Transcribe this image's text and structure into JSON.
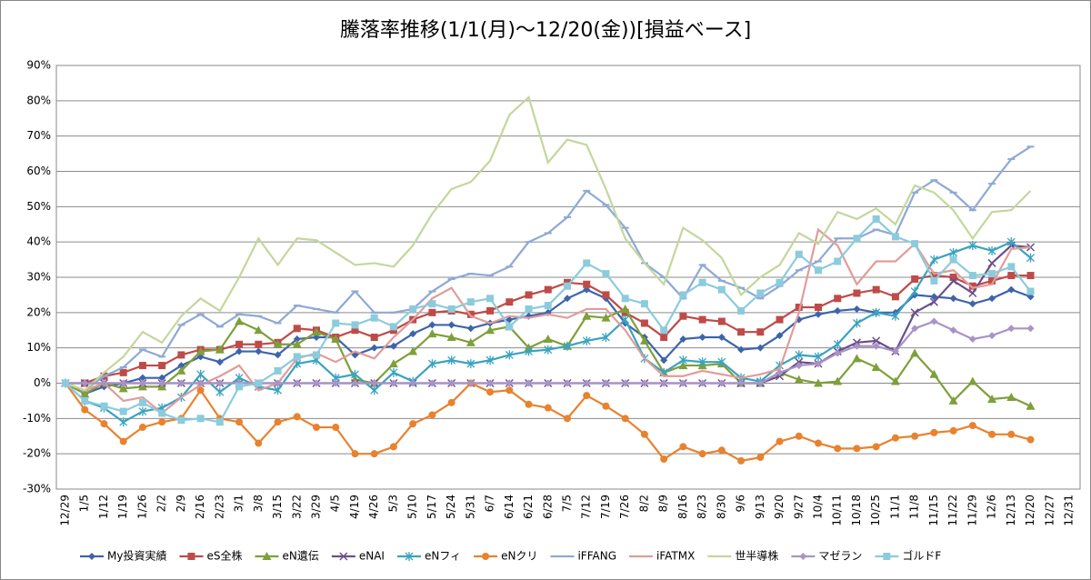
{
  "chart_data": {
    "type": "line",
    "title": "騰落率推移(1/1(月)～12/20(金))[損益ベース]",
    "categories": [
      "12/29",
      "1/5",
      "1/12",
      "1/19",
      "1/26",
      "2/2",
      "2/9",
      "2/16",
      "2/23",
      "3/1",
      "3/8",
      "3/15",
      "3/22",
      "3/29",
      "4/5",
      "4/19",
      "4/26",
      "5/3",
      "5/10",
      "5/17",
      "5/24",
      "5/31",
      "6/7",
      "6/14",
      "6/21",
      "6/28",
      "7/5",
      "7/12",
      "7/19",
      "7/26",
      "8/2",
      "8/9",
      "8/16",
      "8/23",
      "8/30",
      "9/6",
      "9/13",
      "9/20",
      "9/27",
      "10/4",
      "10/11",
      "10/18",
      "10/25",
      "11/1",
      "11/8",
      "11/15",
      "11/22",
      "11/29",
      "12/6",
      "12/13",
      "12/20",
      "12/27",
      "12/31"
    ],
    "ylim": [
      -30,
      90
    ],
    "yticks": [
      {
        "value": -30,
        "label": "-30%"
      },
      {
        "value": -20,
        "label": "-20%"
      },
      {
        "value": -10,
        "label": "-10%"
      },
      {
        "value": 0,
        "label": "0%"
      },
      {
        "value": 10,
        "label": "10%"
      },
      {
        "value": 20,
        "label": "20%"
      },
      {
        "value": 30,
        "label": "30%"
      },
      {
        "value": 40,
        "label": "40%"
      },
      {
        "value": 50,
        "label": "50%"
      },
      {
        "value": 60,
        "label": "60%"
      },
      {
        "value": 70,
        "label": "70%"
      },
      {
        "value": 80,
        "label": "80%"
      },
      {
        "value": 90,
        "label": "90%"
      }
    ],
    "grid": true,
    "legend": "bottom",
    "series": [
      {
        "name": "My投資実績",
        "color": "#3d64ab",
        "marker": "diamond",
        "values": [
          0,
          -3,
          -1,
          0,
          1.5,
          1.5,
          5,
          7.5,
          6,
          9,
          9,
          8,
          12.5,
          13,
          13,
          8,
          10,
          10.5,
          14,
          16.5,
          16.5,
          15.5,
          17,
          18,
          19,
          20,
          24,
          26.5,
          24,
          17,
          13,
          6.5,
          12.5,
          13,
          13,
          9.5,
          10,
          13.5,
          18,
          19.5,
          20.5,
          21,
          20,
          20,
          25,
          24.5,
          24,
          22.5,
          24,
          26.5,
          24.5,
          null,
          null
        ]
      },
      {
        "name": "eS全株",
        "color": "#be4b48",
        "marker": "square",
        "values": [
          0,
          0,
          2,
          3,
          5,
          5,
          8,
          9.5,
          9.5,
          11,
          11,
          11.5,
          15.5,
          15,
          13,
          15,
          13,
          15,
          18,
          20,
          20.5,
          19.5,
          20.5,
          23,
          25,
          26.5,
          28.5,
          28,
          25,
          20,
          17,
          13,
          19,
          18,
          17.5,
          14.5,
          14.5,
          18,
          21.5,
          21.5,
          24,
          25.5,
          26.5,
          24.5,
          29.5,
          30.5,
          30,
          27.5,
          29,
          30.5,
          30.5,
          null,
          null
        ]
      },
      {
        "name": "eN遺伝",
        "color": "#7f9f3a",
        "marker": "triangle",
        "values": [
          0,
          -3,
          0,
          -1.5,
          -1,
          -1,
          3.5,
          9,
          9.5,
          17.5,
          15,
          11,
          11,
          14.5,
          12.5,
          1,
          0,
          5.5,
          9,
          14,
          13,
          11.5,
          15,
          16,
          10,
          12.5,
          10.5,
          19,
          18.5,
          21,
          12,
          3,
          5,
          5,
          5.5,
          0,
          0,
          3,
          1,
          0,
          0.5,
          7,
          4.5,
          0.5,
          8.5,
          2.5,
          -5,
          0.5,
          -4.5,
          -4,
          -6.5,
          null,
          null
        ]
      },
      {
        "name": "eNAI",
        "color": "#6a4f8c",
        "marker": "x",
        "values": [
          0,
          0,
          0,
          0,
          0,
          0,
          0,
          0,
          0,
          0,
          0,
          0,
          0,
          0,
          0,
          0,
          0,
          0,
          0,
          0,
          0,
          0,
          0,
          0,
          0,
          0,
          0,
          0,
          0,
          0,
          0,
          0,
          0,
          0,
          0,
          0,
          0,
          2,
          6,
          5.5,
          9,
          11.5,
          12,
          9,
          20,
          23,
          29,
          25.5,
          34,
          39,
          38.5,
          null,
          null
        ]
      },
      {
        "name": "eNフィ",
        "color": "#3aa3bf",
        "marker": "star",
        "values": [
          0,
          -5,
          -7,
          -11,
          -8,
          -7,
          -4,
          2.5,
          -2.5,
          1.5,
          -1,
          -2,
          5.5,
          6.5,
          1.5,
          2.5,
          -2,
          3,
          0.5,
          5.5,
          6.5,
          5.5,
          6.5,
          8,
          9,
          9.5,
          10.5,
          12,
          13,
          18,
          7,
          3,
          6.5,
          6,
          6,
          1.5,
          0.5,
          5,
          8,
          7.5,
          11,
          17,
          20,
          19,
          26,
          35,
          37,
          39,
          37.5,
          40,
          35.5,
          null,
          null
        ]
      },
      {
        "name": "eNクリ",
        "color": "#e8822e",
        "marker": "circle",
        "values": [
          0,
          -7.5,
          -11.5,
          -16.5,
          -12.5,
          -11,
          -10,
          -2,
          -10,
          -11,
          -17,
          -11,
          -9.5,
          -12.5,
          -12.5,
          -20,
          -20,
          -18,
          -11.5,
          -9,
          -5.5,
          0,
          -2.5,
          -2,
          -6,
          -7,
          -10,
          -3.5,
          -6.5,
          -10,
          -14.5,
          -21.5,
          -18,
          -20,
          -19,
          -22,
          -21,
          -16.5,
          -15,
          -17,
          -18.5,
          -18.5,
          -18,
          -15.5,
          -15,
          -14,
          -13.5,
          -12,
          -14.5,
          -14.5,
          -16,
          null,
          null
        ]
      },
      {
        "name": "iFFANG",
        "color": "#8ea9d6",
        "marker": "dash",
        "values": [
          0,
          -2,
          2,
          4.5,
          9.5,
          7.5,
          16.5,
          19.5,
          16,
          19.5,
          19,
          17,
          22,
          21,
          20,
          26,
          20,
          20,
          21,
          26,
          29.5,
          31,
          30.5,
          33,
          40,
          42.5,
          47,
          54.5,
          50.5,
          44,
          34,
          30,
          24,
          33.5,
          29,
          27,
          24,
          27.5,
          32,
          34.5,
          41,
          41,
          43.5,
          42,
          54,
          57.5,
          54,
          49,
          56.5,
          63.5,
          67,
          null,
          null
        ]
      },
      {
        "name": "iFATMX",
        "color": "#e09c9a",
        "marker": "none",
        "values": [
          0,
          -2,
          0,
          -5,
          -4,
          -8.5,
          -4,
          -0.5,
          2,
          5,
          -2,
          0,
          7,
          8.5,
          6,
          9,
          7,
          13,
          18,
          24,
          27,
          19,
          17,
          19,
          18.5,
          19.5,
          18.5,
          21,
          21,
          15,
          7,
          2,
          2,
          3.5,
          2.5,
          1.5,
          2.5,
          4,
          20,
          43.5,
          39,
          28,
          34.5,
          34.5,
          39.5,
          31,
          32,
          27,
          28,
          38,
          38.5,
          null,
          null
        ]
      },
      {
        "name": "世半導株",
        "color": "#c3d79c",
        "marker": "none",
        "values": [
          0,
          -2,
          3,
          7.5,
          14.5,
          11.5,
          19,
          24,
          20.5,
          30,
          41,
          33.5,
          41,
          40.5,
          37,
          33.5,
          34,
          33,
          39,
          48,
          55,
          57,
          63,
          76,
          81,
          62.5,
          69,
          67.5,
          55,
          41,
          34,
          28,
          44,
          40.5,
          35.5,
          25,
          30,
          33.5,
          42.5,
          39.5,
          48.5,
          46.5,
          49.5,
          45,
          56,
          54,
          49,
          41,
          48.5,
          49,
          54.5,
          null,
          null
        ]
      },
      {
        "name": "マゼラン",
        "color": "#a993c4",
        "marker": "diamond",
        "values": [
          0,
          0,
          0,
          0,
          0,
          0,
          0,
          0,
          0,
          0,
          0,
          0,
          0,
          0,
          0,
          0,
          0,
          0,
          0,
          0,
          0,
          0,
          0,
          0,
          0,
          0,
          0,
          0,
          0,
          0,
          0,
          0,
          0,
          0,
          0,
          0,
          0,
          3,
          5,
          5.5,
          8.5,
          10.5,
          10.5,
          9,
          15.5,
          17.5,
          15,
          12.5,
          13.5,
          15.5,
          15.5,
          null,
          null
        ]
      },
      {
        "name": "ゴルドF",
        "color": "#8ccbdc",
        "marker": "square",
        "values": [
          0,
          -5,
          -6.5,
          -8,
          -5.5,
          -8.5,
          -10.5,
          -10,
          -11,
          -1,
          0,
          3.5,
          7.5,
          8,
          17,
          16.5,
          18.5,
          16,
          21,
          22.5,
          21,
          23,
          24,
          16,
          21,
          22,
          27.5,
          34,
          31,
          24,
          22.5,
          15,
          25,
          28.5,
          26.5,
          20.5,
          25.5,
          28.5,
          36.5,
          32,
          34.5,
          41,
          46.5,
          41.5,
          39.5,
          29,
          35,
          30.5,
          31,
          33,
          26,
          null,
          null
        ]
      }
    ]
  }
}
